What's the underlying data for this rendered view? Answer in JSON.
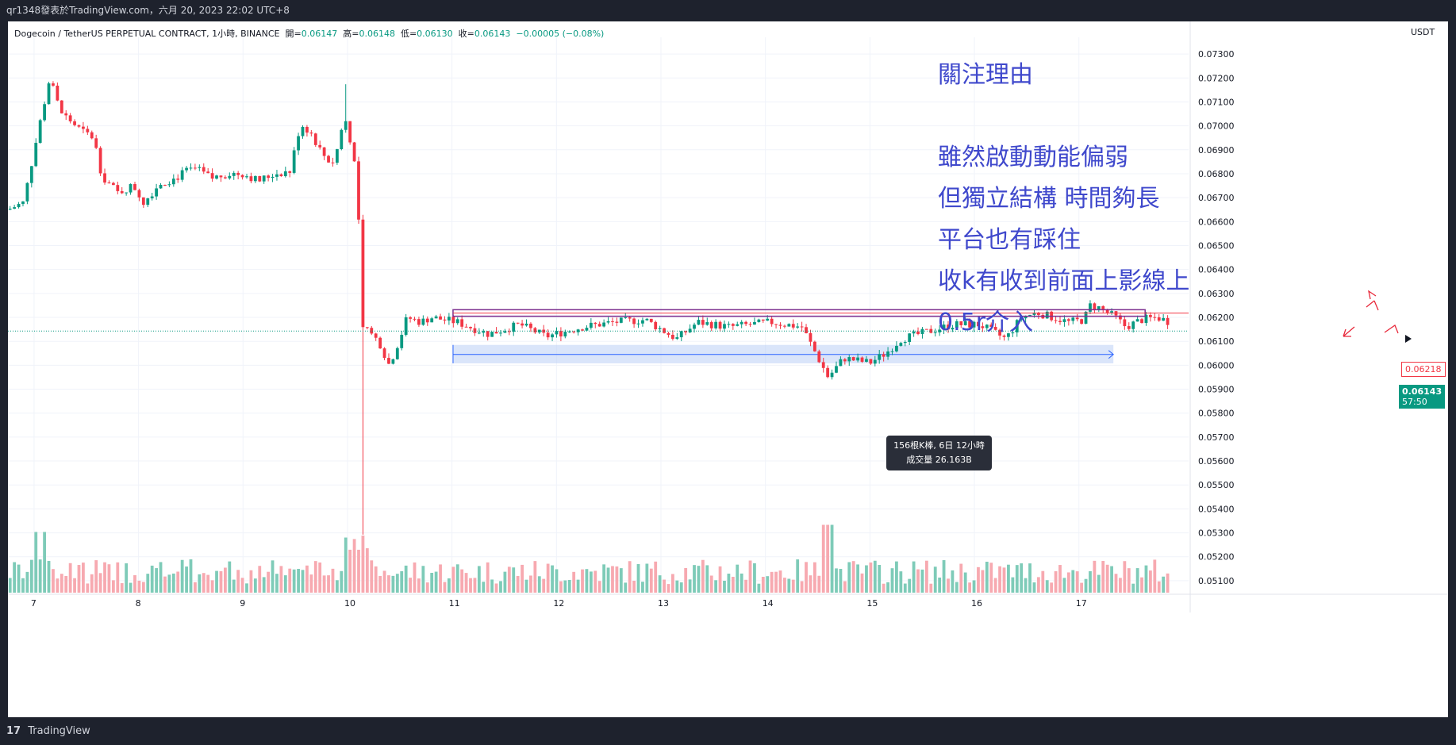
{
  "topbar": {
    "text": "qr1348發表於TradingView.com，六月 20, 2023 22:02 UTC+8"
  },
  "header": {
    "symbol": "Dogecoin / TetherUS PERPETUAL CONTRACT, 1小時, BINANCE",
    "open_label": "開=",
    "open": "0.06147",
    "high_label": "高=",
    "high": "0.06148",
    "low_label": "低=",
    "low": "0.06130",
    "close_label": "收=",
    "close": "0.06143",
    "change": "−0.00005 (−0.08%)"
  },
  "currency": "USDT",
  "notes": [
    "關注理由",
    "雖然啟動動能偏弱",
    "但獨立結構 時間夠長",
    "平台也有踩住",
    "收k有收到前面上影線上",
    "0.5r介入"
  ],
  "tooltip": {
    "line1": "156根K棒, 6日 12小時",
    "line2": "成交量 26.163B"
  },
  "price_tags": {
    "line_price": "0.06218",
    "last_price": "0.06143",
    "countdown": "57:50"
  },
  "bottombar": {
    "logo": "17",
    "text": "TradingView"
  },
  "colors": {
    "up": "#089981",
    "down": "#f23645",
    "up_vol": "#7ecbb8",
    "down_vol": "#f7a9b0",
    "annotation": "#3f48cc",
    "rect_line": "#7b2f8f",
    "range_fill": "#bbd0f5",
    "hand_drawn": "#e8283a"
  },
  "chart_data": {
    "type": "candlestick",
    "title": "Dogecoin / TetherUS PERPETUAL CONTRACT, 1小時, BINANCE",
    "ylim": [
      0.0505,
      0.0737
    ],
    "y_ticks": [
      "0.07300",
      "0.07200",
      "0.07100",
      "0.07000",
      "0.06900",
      "0.06800",
      "0.06700",
      "0.06600",
      "0.06500",
      "0.06400",
      "0.06300",
      "0.06200",
      "0.06100",
      "0.06000",
      "0.05900",
      "0.05800",
      "0.05700",
      "0.05600",
      "0.05500",
      "0.05400",
      "0.05300",
      "0.05200",
      "0.05100"
    ],
    "x_ticks": [
      {
        "label": "7",
        "x": 6.55
      },
      {
        "label": "8",
        "x": 7.55
      },
      {
        "label": "9",
        "x": 8.55
      },
      {
        "label": "10",
        "x": 9.55
      },
      {
        "label": "11",
        "x": 10.55
      },
      {
        "label": "12",
        "x": 11.55
      },
      {
        "label": "13",
        "x": 12.55
      },
      {
        "label": "14",
        "x": 13.55
      },
      {
        "label": "15",
        "x": 14.55
      },
      {
        "label": "16",
        "x": 15.55
      },
      {
        "label": "17",
        "x": 16.55
      }
    ],
    "x_range": [
      6.3,
      17.6
    ],
    "keypoints": [
      [
        6.3,
        0.0665
      ],
      [
        6.45,
        0.0668
      ],
      [
        6.6,
        0.07
      ],
      [
        6.7,
        0.072
      ],
      [
        6.8,
        0.0706
      ],
      [
        6.95,
        0.07
      ],
      [
        7.0,
        0.0698
      ],
      [
        7.12,
        0.0695
      ],
      [
        7.2,
        0.0679
      ],
      [
        7.35,
        0.0672
      ],
      [
        7.5,
        0.0675
      ],
      [
        7.6,
        0.0668
      ],
      [
        7.75,
        0.0676
      ],
      [
        7.9,
        0.0678
      ],
      [
        8.0,
        0.0681
      ],
      [
        8.1,
        0.0682
      ],
      [
        8.25,
        0.0678
      ],
      [
        8.4,
        0.068
      ],
      [
        8.55,
        0.068
      ],
      [
        8.7,
        0.0677
      ],
      [
        8.85,
        0.068
      ],
      [
        9.0,
        0.0681
      ],
      [
        9.1,
        0.0701
      ],
      [
        9.2,
        0.0697
      ],
      [
        9.3,
        0.0689
      ],
      [
        9.4,
        0.0684
      ],
      [
        9.45,
        0.069
      ],
      [
        9.52,
        0.0704
      ],
      [
        9.6,
        0.069
      ],
      [
        9.65,
        0.0673
      ],
      [
        9.68,
        0.0615
      ],
      [
        9.75,
        0.0614
      ],
      [
        9.85,
        0.061
      ],
      [
        9.95,
        0.06
      ],
      [
        10.05,
        0.0611
      ],
      [
        10.12,
        0.062
      ],
      [
        10.25,
        0.0618
      ],
      [
        10.35,
        0.062
      ],
      [
        10.6,
        0.0618
      ],
      [
        10.9,
        0.0613
      ],
      [
        11.2,
        0.0617
      ],
      [
        11.45,
        0.0612
      ],
      [
        11.8,
        0.0616
      ],
      [
        12.1,
        0.0618
      ],
      [
        12.4,
        0.0619
      ],
      [
        12.7,
        0.0611
      ],
      [
        12.9,
        0.0618
      ],
      [
        13.2,
        0.0616
      ],
      [
        13.6,
        0.0618
      ],
      [
        13.9,
        0.0616
      ],
      [
        14.15,
        0.0595
      ],
      [
        14.3,
        0.0603
      ],
      [
        14.55,
        0.0601
      ],
      [
        14.7,
        0.0605
      ],
      [
        14.85,
        0.0611
      ],
      [
        15.1,
        0.0614
      ],
      [
        15.35,
        0.0617
      ],
      [
        15.6,
        0.0617
      ],
      [
        15.85,
        0.0611
      ],
      [
        16.0,
        0.062
      ],
      [
        16.15,
        0.0622
      ],
      [
        16.3,
        0.062
      ],
      [
        16.45,
        0.0618
      ],
      [
        16.6,
        0.0619
      ],
      [
        16.65,
        0.0625
      ],
      [
        16.75,
        0.0624
      ],
      [
        16.9,
        0.062
      ],
      [
        17.0,
        0.0616
      ],
      [
        17.15,
        0.0619
      ],
      [
        17.3,
        0.062
      ],
      [
        17.42,
        0.0618
      ]
    ],
    "candle_count": 270,
    "annotations": {
      "rectangle": {
        "x": [
          10.56,
          16.88
        ],
        "y": [
          0.06218,
          0.06232
        ]
      },
      "range_box": {
        "x": [
          10.56,
          16.88
        ],
        "y": [
          0.06008,
          0.06085
        ],
        "label_mid_y": 0.06045
      },
      "last_price_line": 0.06143
    },
    "volume_scale_max": 1.0
  }
}
